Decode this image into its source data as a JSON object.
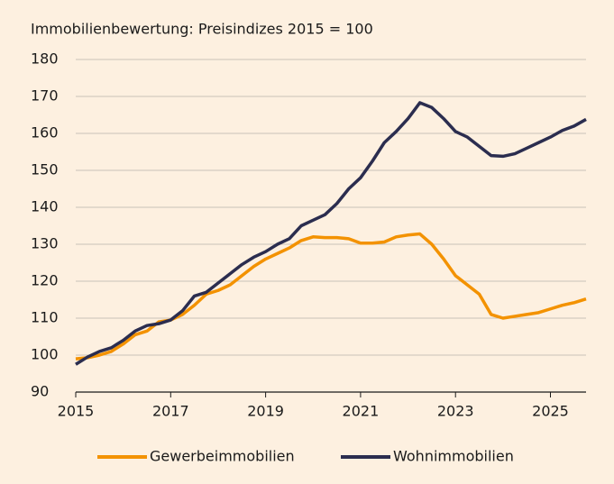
{
  "chart_data": {
    "type": "line",
    "title": "Immobilienbewertung: Preisindizes 2015 = 100",
    "x": [
      2015,
      2015.25,
      2015.5,
      2015.75,
      2016,
      2016.25,
      2016.5,
      2016.75,
      2017,
      2017.25,
      2017.5,
      2017.75,
      2018,
      2018.25,
      2018.5,
      2018.75,
      2019,
      2019.25,
      2019.5,
      2019.75,
      2020,
      2020.25,
      2020.5,
      2020.75,
      2021,
      2021.25,
      2021.5,
      2021.75,
      2022,
      2022.25,
      2022.5,
      2022.75,
      2023,
      2023.25,
      2023.5,
      2023.75,
      2024,
      2024.25,
      2024.5,
      2024.75,
      2025,
      2025.25,
      2025.5,
      2025.75
    ],
    "series": [
      {
        "name": "Gewerbeimmobilien",
        "color": "#f39200",
        "values": [
          99,
          99.3,
          100,
          101,
          103,
          105.5,
          106.5,
          109,
          109.5,
          111,
          113.5,
          116.5,
          117.5,
          119,
          121.5,
          124,
          126,
          127.5,
          129,
          131,
          132,
          131.8,
          131.8,
          131.5,
          130.3,
          130.3,
          130.6,
          132,
          132.5,
          132.8,
          130,
          126,
          121.5,
          119,
          116.5,
          111,
          110,
          110.5,
          111,
          111.5,
          112.5,
          113.5,
          114.2,
          115.2
        ]
      },
      {
        "name": "Wohnimmobilien",
        "color": "#2b2d4f",
        "values": [
          97.5,
          99.5,
          101,
          102,
          104,
          106.5,
          108,
          108.5,
          109.5,
          112,
          116,
          117,
          119.5,
          122,
          124.5,
          126.5,
          128,
          130,
          131.5,
          135,
          136.5,
          138,
          141,
          145,
          148,
          152.5,
          157.5,
          160.5,
          164,
          168.3,
          167,
          164,
          160.5,
          159,
          156.5,
          154,
          153.8,
          154.5,
          156,
          157.5,
          159,
          160.8,
          162,
          163.8
        ]
      }
    ],
    "xlim": [
      2015,
      2025.75
    ],
    "xticks": [
      2015,
      2017,
      2019,
      2021,
      2023,
      2025
    ],
    "ylim": [
      90,
      180
    ],
    "yticks": [
      90,
      100,
      110,
      120,
      130,
      140,
      150,
      160,
      170,
      180
    ],
    "grid": true,
    "legend": "bottom"
  }
}
